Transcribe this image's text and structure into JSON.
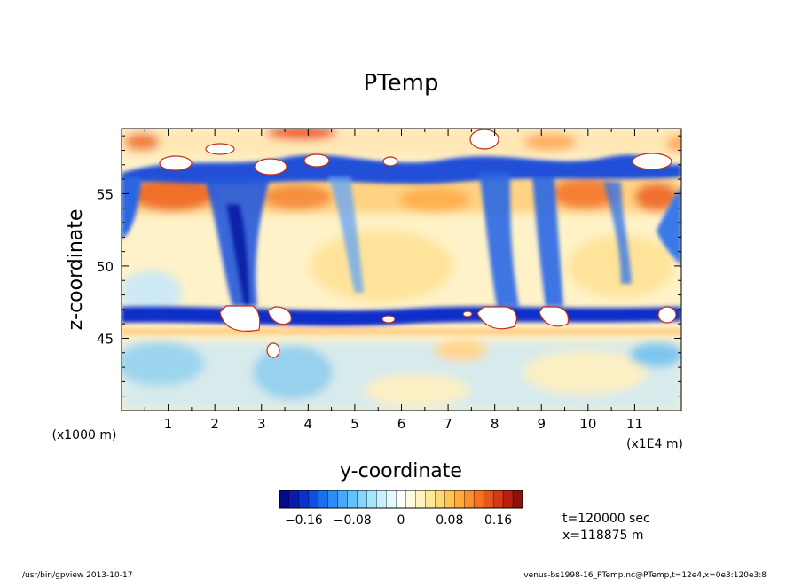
{
  "chart_data": {
    "type": "heatmap",
    "title": "PTemp",
    "xlabel": "y-coordinate",
    "ylabel": "z-coordinate",
    "x_unit_left": "(x1000 m)",
    "x_unit_right": "(x1E4 m)",
    "xlim": [
      0,
      12
    ],
    "ylim": [
      40,
      59.5
    ],
    "x_ticks": [
      "1",
      "2",
      "3",
      "4",
      "5",
      "6",
      "7",
      "8",
      "9",
      "10",
      "11"
    ],
    "y_ticks": [
      "45",
      "50",
      "55"
    ],
    "colorbar": {
      "min": -0.2,
      "max": 0.2,
      "tick_labels": [
        "-0.16",
        "-0.08",
        "0",
        "0.08",
        "0.16"
      ],
      "tick_values": [
        -0.16,
        -0.08,
        0,
        0.08,
        0.16
      ],
      "colors": [
        "#08088c",
        "#0a1cae",
        "#0b33cc",
        "#1050e0",
        "#1b6ef0",
        "#2b8df5",
        "#46a8f8",
        "#63c2fb",
        "#84d6fc",
        "#a6e6fd",
        "#c8f1fe",
        "#e4f9fe",
        "#ffffff",
        "#fffbe0",
        "#fff3bf",
        "#ffe79a",
        "#ffd775",
        "#ffc353",
        "#ffaa3a",
        "#fd8f2c",
        "#f67222",
        "#e9561c",
        "#d43a16",
        "#b72010",
        "#90100b"
      ]
    },
    "features": [
      {
        "kind": "cold band",
        "z": 46.5
      },
      {
        "kind": "warm band",
        "z": 55.3
      },
      {
        "kind": "cold band",
        "z": 57.5
      },
      {
        "kind": "cold plume",
        "y": 2.6
      },
      {
        "kind": "cold plume",
        "y": 7.8
      },
      {
        "kind": "cold plume",
        "y": 9.1
      }
    ]
  },
  "annotations": {
    "time": "t=120000 sec",
    "position": "x=118875 m"
  },
  "footer": {
    "left": "/usr/bin/gpview   2013-10-17",
    "right": "venus-bs1998-16_PTemp.nc@PTemp,t=12e4,x=0e3:120e3:8"
  }
}
